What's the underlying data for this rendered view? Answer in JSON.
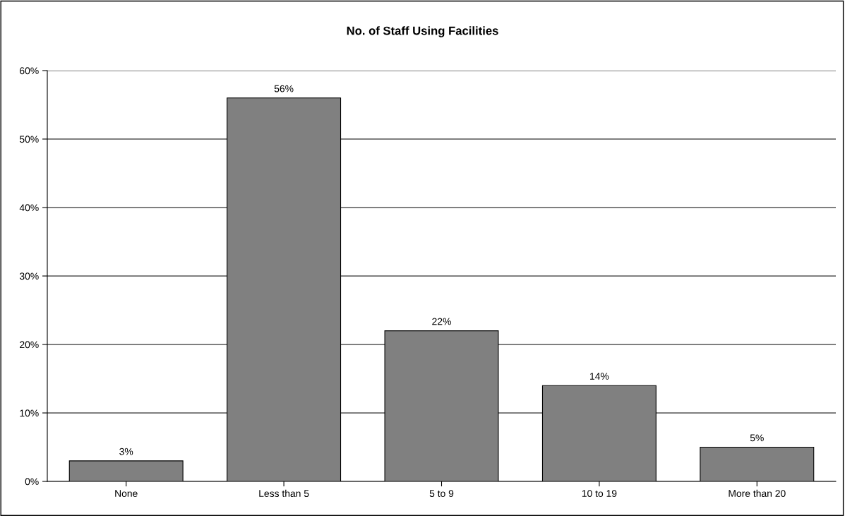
{
  "chart_data": {
    "type": "bar",
    "title": "No. of Staff Using Facilities",
    "categories": [
      "None",
      "Less than 5",
      "5 to 9",
      "10 to 19",
      "More than 20"
    ],
    "values": [
      3,
      56,
      22,
      14,
      5
    ],
    "value_labels": [
      "3%",
      "56%",
      "22%",
      "14%",
      "5%"
    ],
    "color": "#808080",
    "ylim": [
      0,
      60
    ],
    "yticks": [
      {
        "value": 0,
        "label": "0%"
      },
      {
        "value": 10,
        "label": "10%"
      },
      {
        "value": 20,
        "label": "20%"
      },
      {
        "value": 30,
        "label": "30%"
      },
      {
        "value": 40,
        "label": "40%"
      },
      {
        "value": 50,
        "label": "50%"
      },
      {
        "value": 60,
        "label": "60%"
      }
    ],
    "grid": "y",
    "legend": false
  }
}
